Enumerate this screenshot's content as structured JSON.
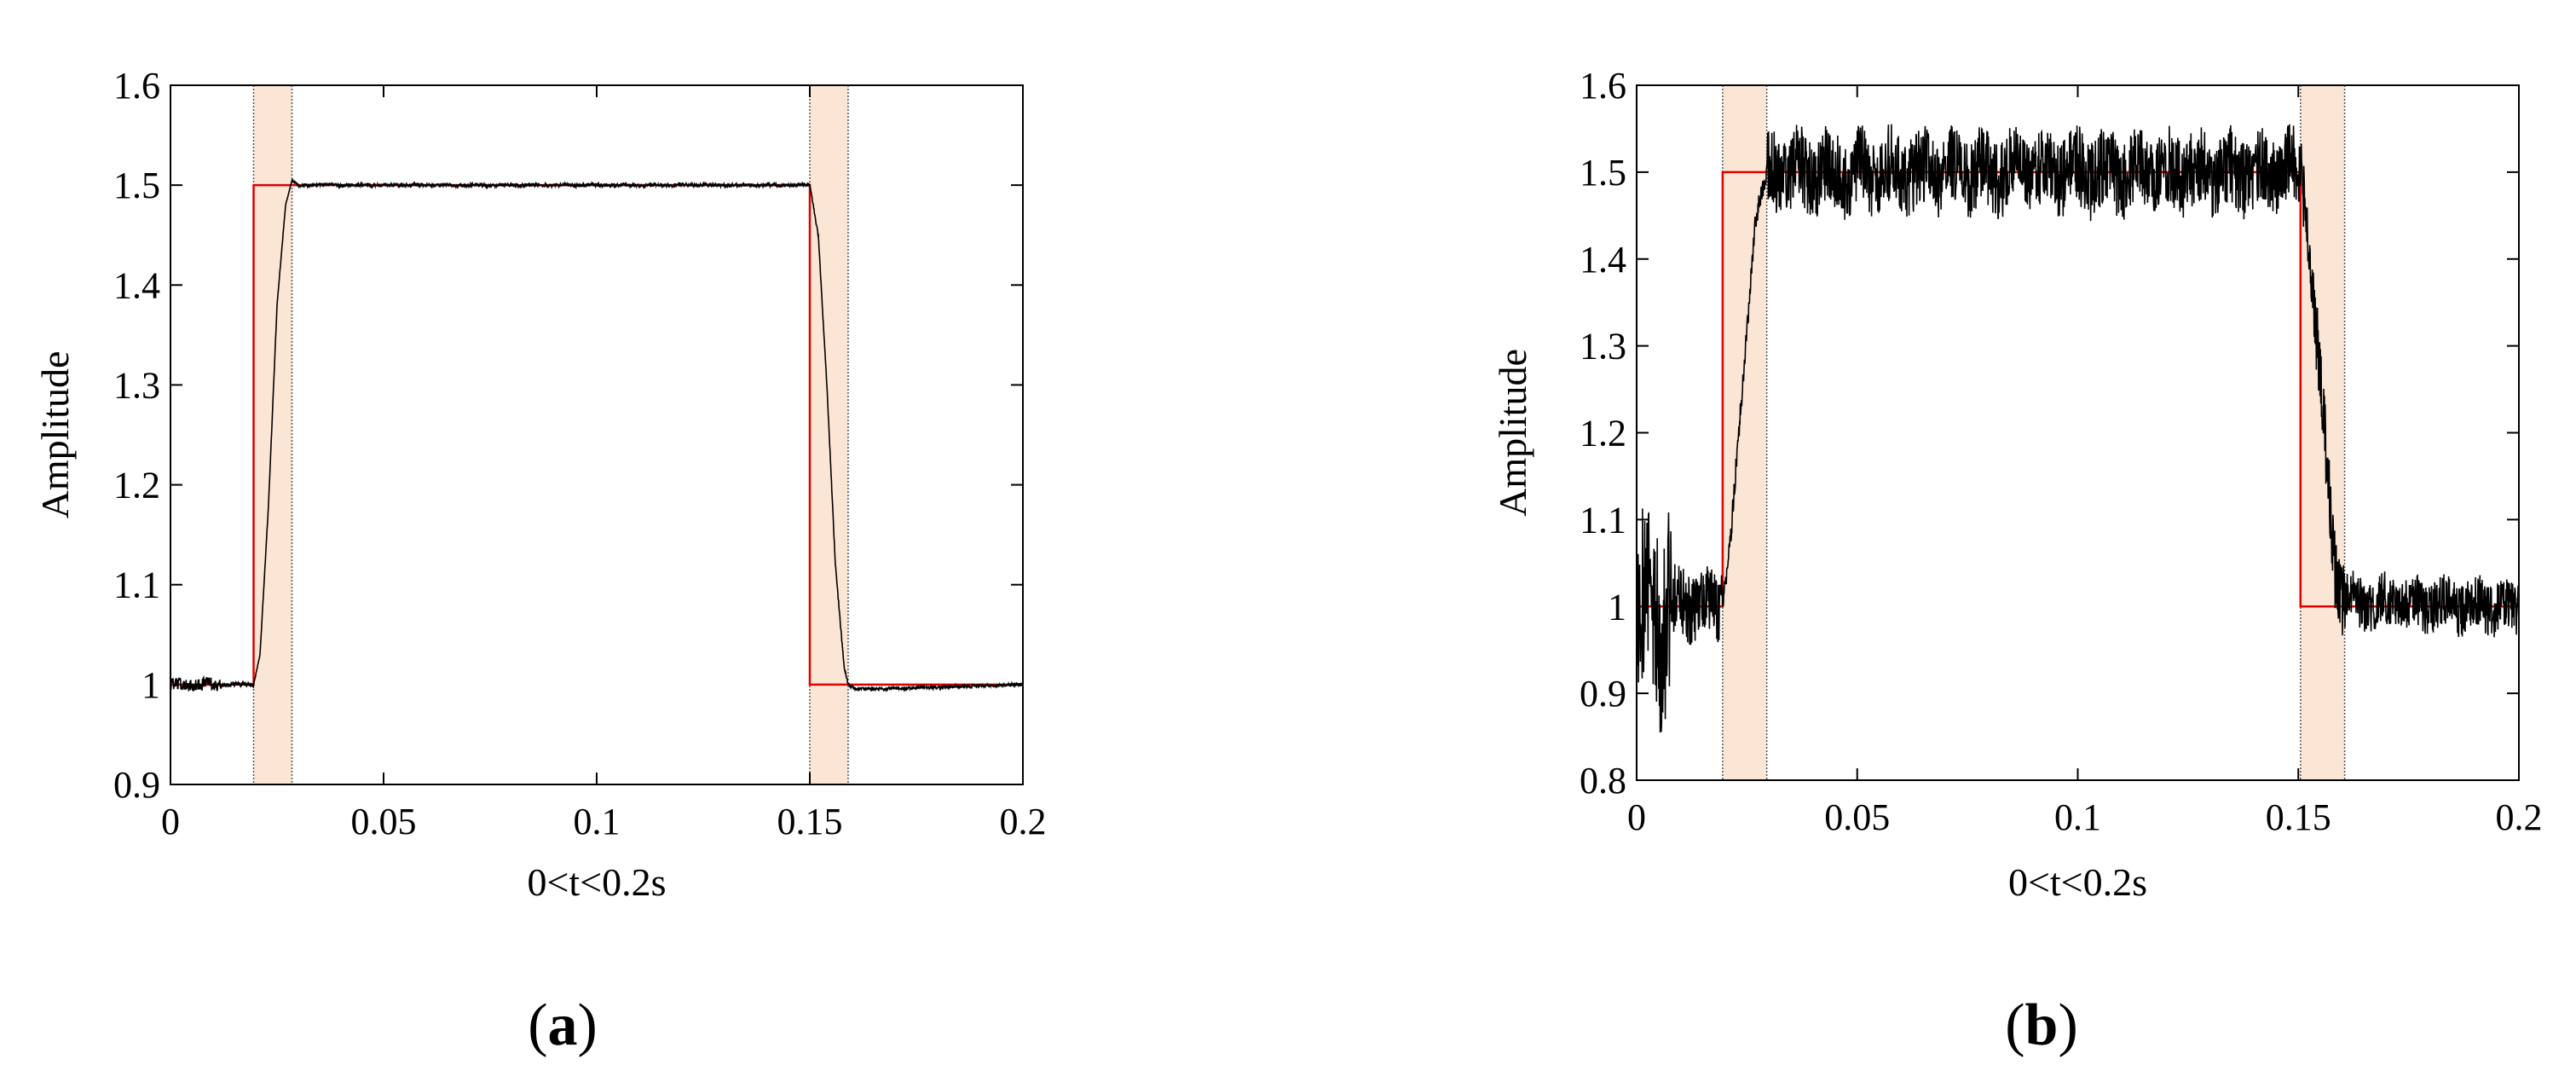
{
  "chart_data": [
    {
      "panel": "(a)",
      "panel_open": "(",
      "panel_letter": "a",
      "panel_close": ")",
      "type": "line",
      "title": "",
      "xlabel": "0<t<0.2s",
      "ylabel": "Amplitude",
      "xlim": [
        0,
        0.2
      ],
      "ylim": [
        0.9,
        1.6
      ],
      "xticks": [
        0,
        0.05,
        0.1,
        0.15,
        0.2
      ],
      "xtick_labels": [
        "0",
        "0.05",
        "0.1",
        "0.15",
        "0.2"
      ],
      "yticks": [
        0.9,
        1,
        1.1,
        1.2,
        1.3,
        1.4,
        1.5,
        1.6
      ],
      "ytick_labels": [
        "0.9",
        "1",
        "1.1",
        "1.2",
        "1.3",
        "1.4",
        "1.5",
        "1.6"
      ],
      "grid": false,
      "shaded_regions": [
        [
          0.0195,
          0.0285
        ],
        [
          0.15,
          0.159
        ]
      ],
      "noise": {
        "low_start": 0.006,
        "high": 0.0018,
        "low_end": 0.0015,
        "low_start_window": 0.012
      },
      "series": [
        {
          "color": "#e00000",
          "step": true,
          "x": [
            0,
            0.0195,
            0.0195,
            0.15,
            0.15,
            0.2
          ],
          "y": [
            1,
            1,
            1.5,
            1.5,
            1,
            1
          ]
        },
        {
          "color": "#000000",
          "x": [
            0,
            0.0195,
            0.021,
            0.023,
            0.025,
            0.027,
            0.0285,
            0.03,
            0.15,
            0.152,
            0.154,
            0.156,
            0.158,
            0.159,
            0.161,
            0.2
          ],
          "y": [
            1.0,
            1.0,
            1.03,
            1.18,
            1.38,
            1.48,
            1.505,
            1.5,
            1.5,
            1.45,
            1.3,
            1.12,
            1.02,
            1.0,
            0.995,
            1.0
          ]
        }
      ]
    },
    {
      "panel": "(b)",
      "panel_open": "(",
      "panel_letter": "b",
      "panel_close": ")",
      "type": "line",
      "title": "",
      "xlabel": "0<t<0.2s",
      "ylabel": "Amplitude",
      "xlim": [
        0,
        0.2
      ],
      "ylim": [
        0.8,
        1.6
      ],
      "xticks": [
        0,
        0.05,
        0.1,
        0.15,
        0.2
      ],
      "xtick_labels": [
        "0",
        "0.05",
        "0.1",
        "0.15",
        "0.2"
      ],
      "yticks": [
        0.8,
        0.9,
        1,
        1.1,
        1.2,
        1.3,
        1.4,
        1.5,
        1.6
      ],
      "ytick_labels": [
        "0.8",
        "0.9",
        "1",
        "1.1",
        "1.2",
        "1.3",
        "1.4",
        "1.5",
        "1.6"
      ],
      "grid": false,
      "shaded_regions": [
        [
          0.0195,
          0.0295
        ],
        [
          0.1505,
          0.1605
        ]
      ],
      "noise": {
        "low_start": 0.12,
        "high": 0.045,
        "low_end": 0.03,
        "low_start_window": 0.008
      },
      "series": [
        {
          "color": "#e00000",
          "step": true,
          "x": [
            0,
            0.0195,
            0.0195,
            0.1505,
            0.1505,
            0.2
          ],
          "y": [
            1,
            1,
            1.5,
            1.5,
            1,
            1
          ]
        },
        {
          "color": "#000000",
          "x": [
            0,
            0.0195,
            0.021,
            0.024,
            0.027,
            0.0295,
            0.031,
            0.1505,
            0.152,
            0.155,
            0.158,
            0.1605,
            0.2
          ],
          "y": [
            1.0,
            1.005,
            1.06,
            1.25,
            1.45,
            1.5,
            1.5,
            1.5,
            1.45,
            1.25,
            1.06,
            1.005,
            1.0
          ]
        }
      ]
    }
  ]
}
